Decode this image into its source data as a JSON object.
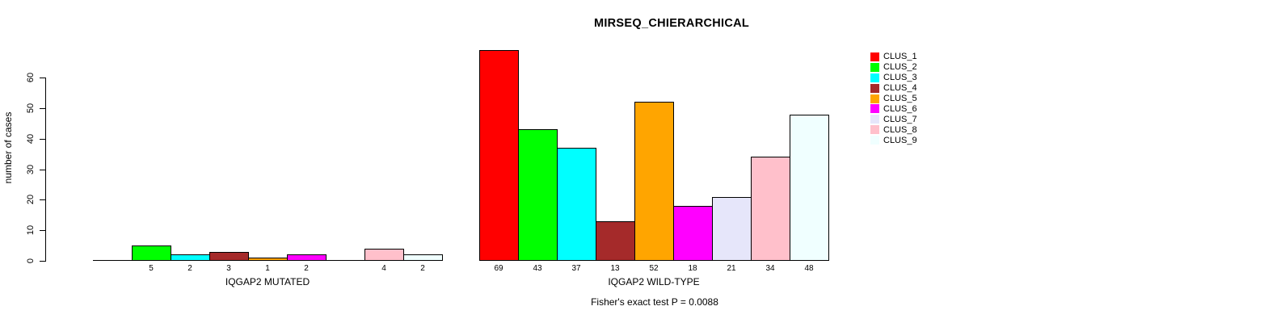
{
  "chart_data": {
    "type": "bar",
    "title": "MIRSEQ_CHIERARCHICAL",
    "ylabel": "number of cases",
    "annotation": "Fisher's exact test P = 0.0088",
    "ylim": [
      0,
      69
    ],
    "yticks": [
      0,
      10,
      20,
      30,
      40,
      50,
      60
    ],
    "grid": false,
    "legend_position": "right",
    "categories": [
      "CLUS_1",
      "CLUS_2",
      "CLUS_3",
      "CLUS_4",
      "CLUS_5",
      "CLUS_6",
      "CLUS_7",
      "CLUS_8",
      "CLUS_9"
    ],
    "colors": [
      "#FF0000",
      "#00FF00",
      "#00FFFF",
      "#A52A2A",
      "#FFA500",
      "#FF00FF",
      "#E6E6FA",
      "#FFC0CB",
      "#F0FFFF"
    ],
    "groups": [
      {
        "label": "IQGAP2 MUTATED",
        "values": [
          0,
          5,
          2,
          3,
          1,
          2,
          0,
          4,
          2
        ]
      },
      {
        "label": "IQGAP2 WILD-TYPE",
        "values": [
          69,
          43,
          37,
          13,
          52,
          18,
          21,
          34,
          48
        ]
      }
    ]
  }
}
